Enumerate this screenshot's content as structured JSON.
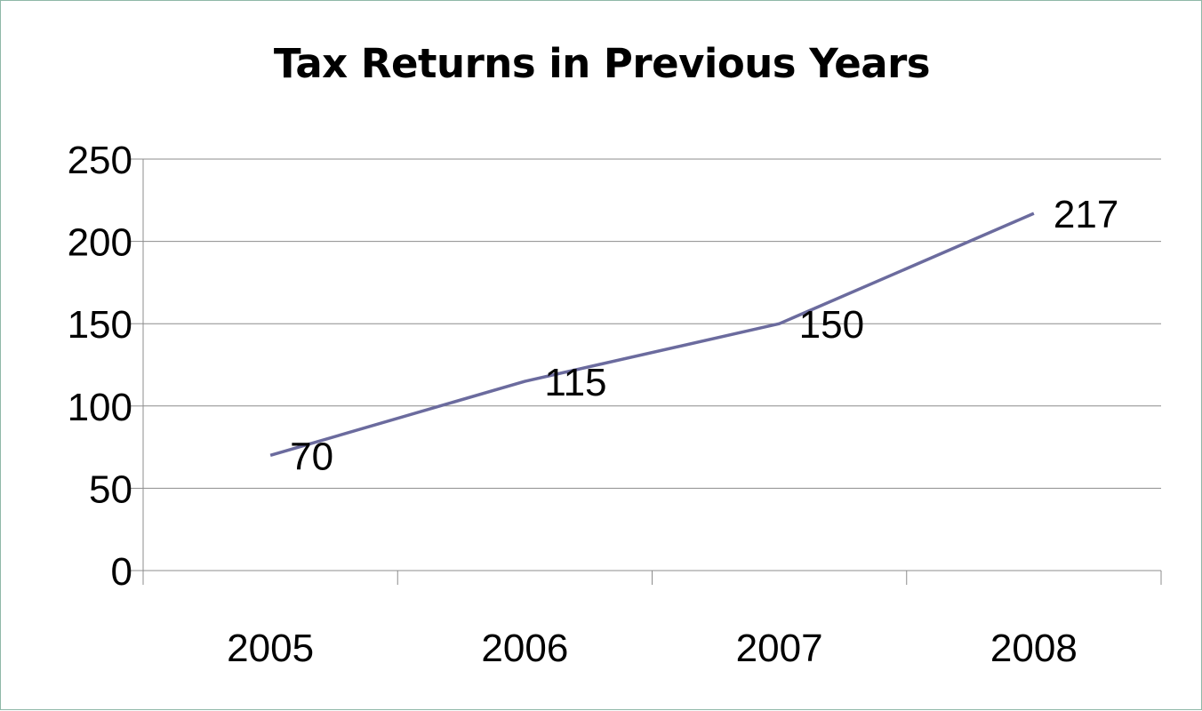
{
  "chart_data": {
    "type": "line",
    "title": "Tax Returns in Previous Years",
    "categories": [
      "2005",
      "2006",
      "2007",
      "2008"
    ],
    "series": [
      {
        "values": [
          70,
          115,
          150,
          217
        ],
        "color": "#6b6b9e"
      }
    ],
    "data_labels": [
      "70",
      "115",
      "150",
      "217"
    ],
    "yticks": [
      "0",
      "50",
      "100",
      "150",
      "200",
      "250"
    ],
    "ylim": [
      0,
      250
    ],
    "grid": true,
    "legend": "none"
  }
}
